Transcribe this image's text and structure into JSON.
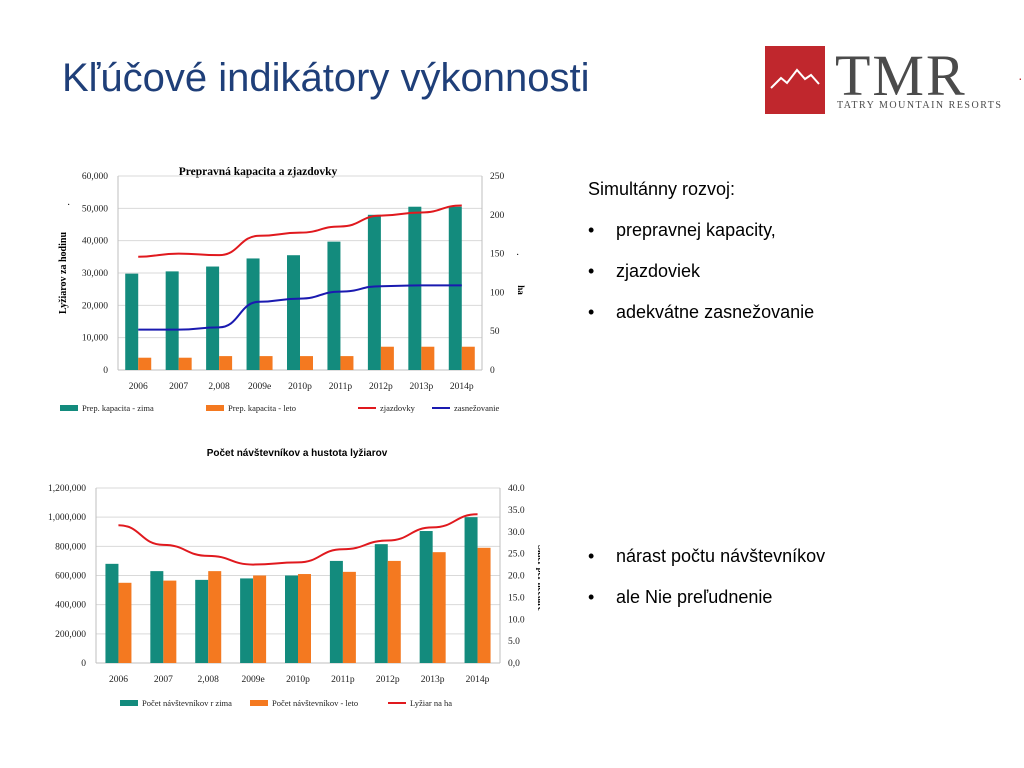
{
  "slide": {
    "title": "Kľúčové indikátory výkonnosti",
    "logo": {
      "main": "TMR",
      "sub": "TATRY MOUNTAIN RESORTS"
    },
    "edge_mark": "·"
  },
  "text_top": {
    "heading": "Simultánny rozvoj:",
    "bullets": [
      "prepravnej kapacity,",
      "zjazdoviek",
      "adekvátne zasnežovanie"
    ]
  },
  "text_bottom": {
    "bullets": [
      "nárast počtu návštevníkov",
      "ale Nie preľudnenie"
    ]
  },
  "colors": {
    "title": "#1F3F79",
    "teal": "#138B7D",
    "orange": "#F47920",
    "red": "#E0191E",
    "blue": "#1A1AB0",
    "logo_red": "#C0272D"
  },
  "chart_data": [
    {
      "type": "bar",
      "title": "Prepravná kapacita a zjazdovky",
      "categories": [
        "2006",
        "2007",
        "2,008",
        "2009e",
        "2010p",
        "2011p",
        "2012p",
        "2013p",
        "2014p"
      ],
      "ylabel": "Lyžiarov za hodinu",
      "y2label": "ha",
      "ylim": [
        0,
        60000
      ],
      "y2lim": [
        0,
        250
      ],
      "yticks": [
        "0",
        "10,000",
        "20,000",
        "30,000",
        "40,000",
        "50,000",
        "60,000"
      ],
      "y2ticks": [
        "0",
        "50",
        "100",
        "150",
        "200",
        "250"
      ],
      "ylabel_mark": "·",
      "y2label_mark": "·",
      "series": [
        {
          "name": "Prep. kapacita - zima",
          "kind": "bar",
          "axis": "left",
          "color": "#138B7D",
          "values": [
            29800,
            30500,
            32000,
            34500,
            35500,
            39700,
            48000,
            50500,
            50500
          ]
        },
        {
          "name": "Prep. kapacita - leto",
          "kind": "bar",
          "axis": "left",
          "color": "#F47920",
          "values": [
            3800,
            3800,
            4300,
            4300,
            4300,
            4300,
            7200,
            7200,
            7200
          ]
        },
        {
          "name": "zjazdovky",
          "kind": "line",
          "axis": "right",
          "color": "#E0191E",
          "values": [
            146,
            150,
            148,
            173,
            177,
            185,
            199,
            203,
            212
          ]
        },
        {
          "name": "zasnežovanie",
          "kind": "line",
          "axis": "right",
          "color": "#1A1AB0",
          "values": [
            52,
            52,
            55,
            88,
            92,
            101,
            108,
            109,
            109
          ]
        }
      ]
    },
    {
      "type": "bar",
      "title": "Počet návštevníkov a hustota lyžiarov",
      "categories": [
        "2006",
        "2007",
        "2,008",
        "2009e",
        "2010p",
        "2011p",
        "2012p",
        "2013p",
        "2014p"
      ],
      "ylabel": "",
      "y2label": "Skier per hectare",
      "ylim": [
        0,
        1200000
      ],
      "y2lim": [
        0,
        40
      ],
      "yticks": [
        "0",
        "200,000",
        "400,000",
        "600,000",
        "800,000",
        "1,000,000",
        "1,200,000"
      ],
      "y2ticks": [
        "0,0",
        "5.0",
        "10.0",
        "15.0",
        "20.0",
        "25.0",
        "30.0",
        "35.0",
        "40.0"
      ],
      "series": [
        {
          "name": "Počet návštevníkov r zima",
          "kind": "bar",
          "axis": "left",
          "color": "#138B7D",
          "values": [
            680000,
            630000,
            570000,
            580000,
            600000,
            700000,
            815000,
            905000,
            1000000
          ]
        },
        {
          "name": "Počet návštevníkov - leto",
          "kind": "bar",
          "axis": "left",
          "color": "#F47920",
          "values": [
            550000,
            565000,
            630000,
            600000,
            610000,
            625000,
            700000,
            760000,
            790000
          ]
        },
        {
          "name": "Lyžiar na ha",
          "kind": "line",
          "axis": "right",
          "color": "#E0191E",
          "values": [
            31.5,
            27.0,
            24.5,
            22.5,
            23.0,
            26.0,
            28.0,
            31.0,
            34.0
          ]
        }
      ]
    }
  ]
}
